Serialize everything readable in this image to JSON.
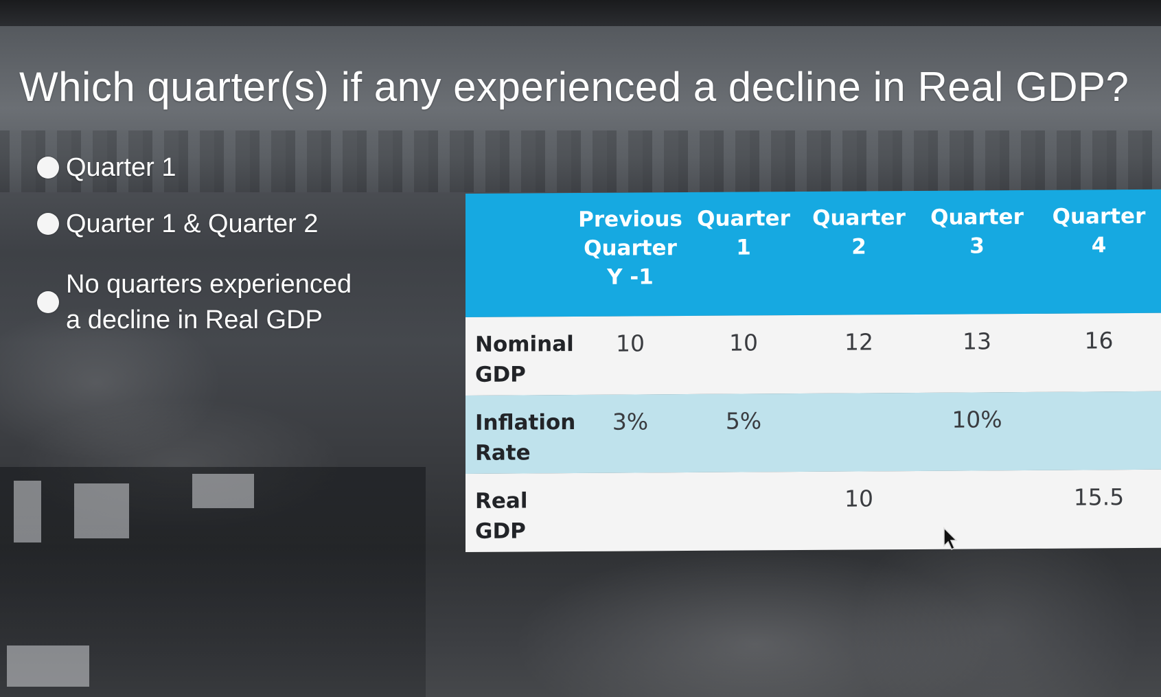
{
  "question": {
    "text": "Which quarter(s) if any experienced a decline in Real GDP?"
  },
  "options": [
    {
      "label": "Quarter 1"
    },
    {
      "label": "Quarter 1 & Quarter 2"
    },
    {
      "label_line1": "No quarters experienced",
      "label_line2": "a decline in Real GDP"
    }
  ],
  "table": {
    "headers": [
      {
        "line1": "",
        "line2": "",
        "line3": ""
      },
      {
        "line1": "Previous",
        "line2": "Quarter",
        "line3": "Y -1"
      },
      {
        "line1": "Quarter",
        "line2": "1",
        "line3": ""
      },
      {
        "line1": "Quarter",
        "line2": "2",
        "line3": ""
      },
      {
        "line1": "Quarter",
        "line2": "3",
        "line3": ""
      },
      {
        "line1": "Quarter",
        "line2": "4",
        "line3": ""
      }
    ],
    "rows": [
      {
        "label_line1": "Nominal",
        "label_line2": "GDP",
        "cells": [
          "10",
          "10",
          "12",
          "13",
          "16"
        ]
      },
      {
        "label_line1": "Inflation",
        "label_line2": "Rate",
        "cells": [
          "3%",
          "5%",
          "",
          "10%",
          ""
        ]
      },
      {
        "label_line1": "Real",
        "label_line2": "GDP",
        "cells": [
          "",
          "",
          "10",
          "",
          "15.5"
        ]
      }
    ]
  },
  "colors": {
    "header_blue": "#16a9e1",
    "row_light_blue": "#bfe2ec",
    "row_white": "#f4f4f4"
  }
}
